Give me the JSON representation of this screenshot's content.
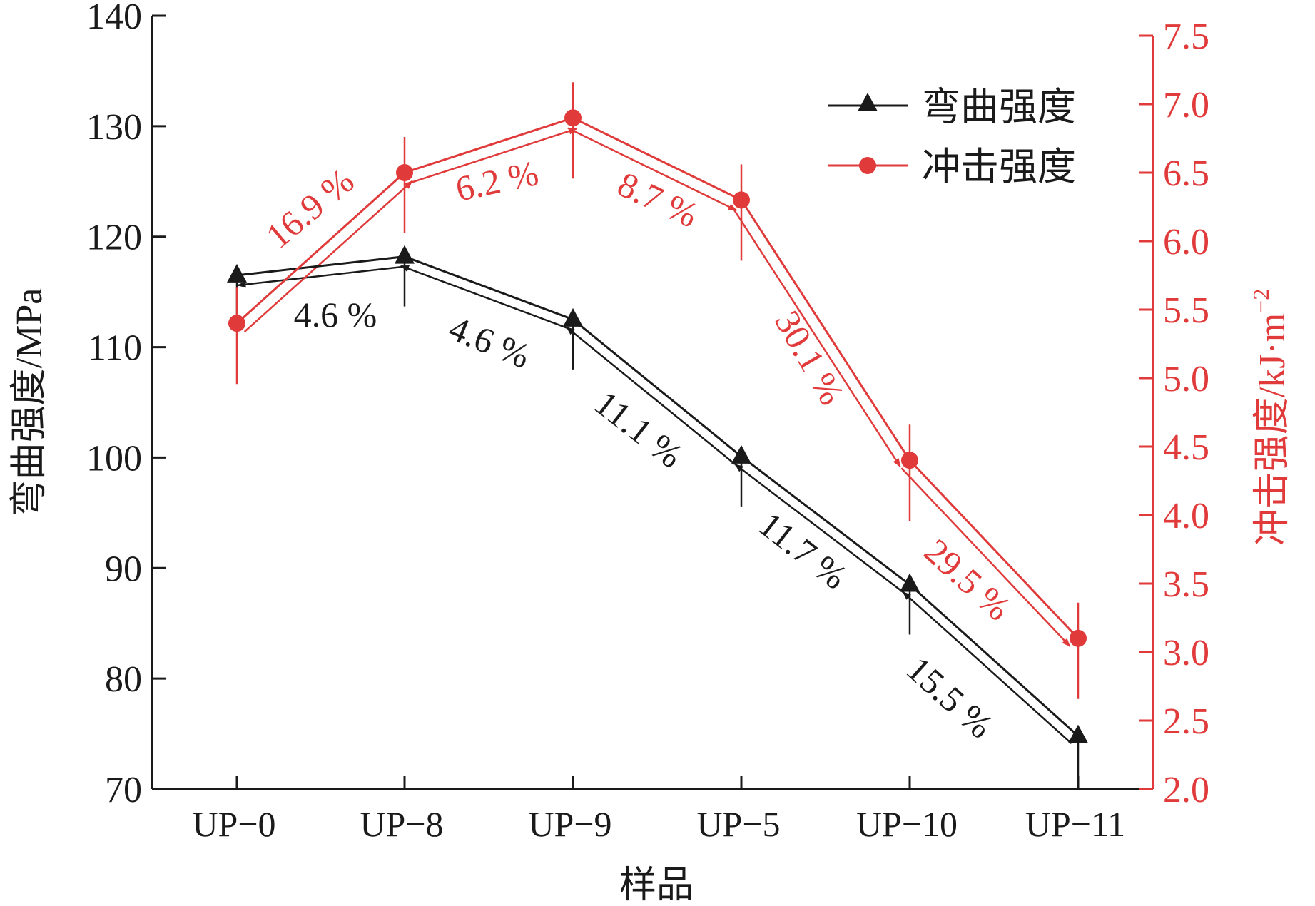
{
  "chart_data": {
    "type": "line",
    "categories": [
      "UP−0",
      "UP−8",
      "UP−9",
      "UP−5",
      "UP−10",
      "UP−11"
    ],
    "xlabel": "样品",
    "ylabel_left": "弯曲强度/MPa",
    "ylabel_right_main": "冲击强度/kJ·m",
    "ylabel_right_sup": "−2",
    "ylim_left": [
      70,
      140
    ],
    "ylim_right": [
      2.0,
      7.5
    ],
    "yticks_left": [
      "70",
      "80",
      "90",
      "100",
      "110",
      "120",
      "130",
      "140"
    ],
    "yticks_right": [
      "2.0",
      "2.5",
      "3.0",
      "3.5",
      "4.0",
      "4.5",
      "5.0",
      "5.5",
      "6.0",
      "6.5",
      "7.0",
      "7.5"
    ],
    "legend_position": "top-right",
    "grid": false,
    "series": [
      {
        "name": "弯曲强度",
        "axis": "left",
        "marker": "triangle",
        "color": "#1a1a1a",
        "values": [
          116.5,
          118.2,
          112.5,
          100.1,
          88.5,
          74.8
        ]
      },
      {
        "name": "冲击强度",
        "axis": "right",
        "marker": "circle",
        "color": "#e03a3a",
        "values": [
          5.4,
          6.5,
          6.9,
          6.3,
          4.4,
          3.1
        ]
      }
    ],
    "annotations_left": [
      "4.6 %",
      "4.6 %",
      "11.1 %",
      "11.7 %",
      "15.5 %"
    ],
    "annotations_right": [
      "16.9 %",
      "6.2 %",
      "8.7 %",
      "30.1 %",
      "29.5 %"
    ]
  }
}
